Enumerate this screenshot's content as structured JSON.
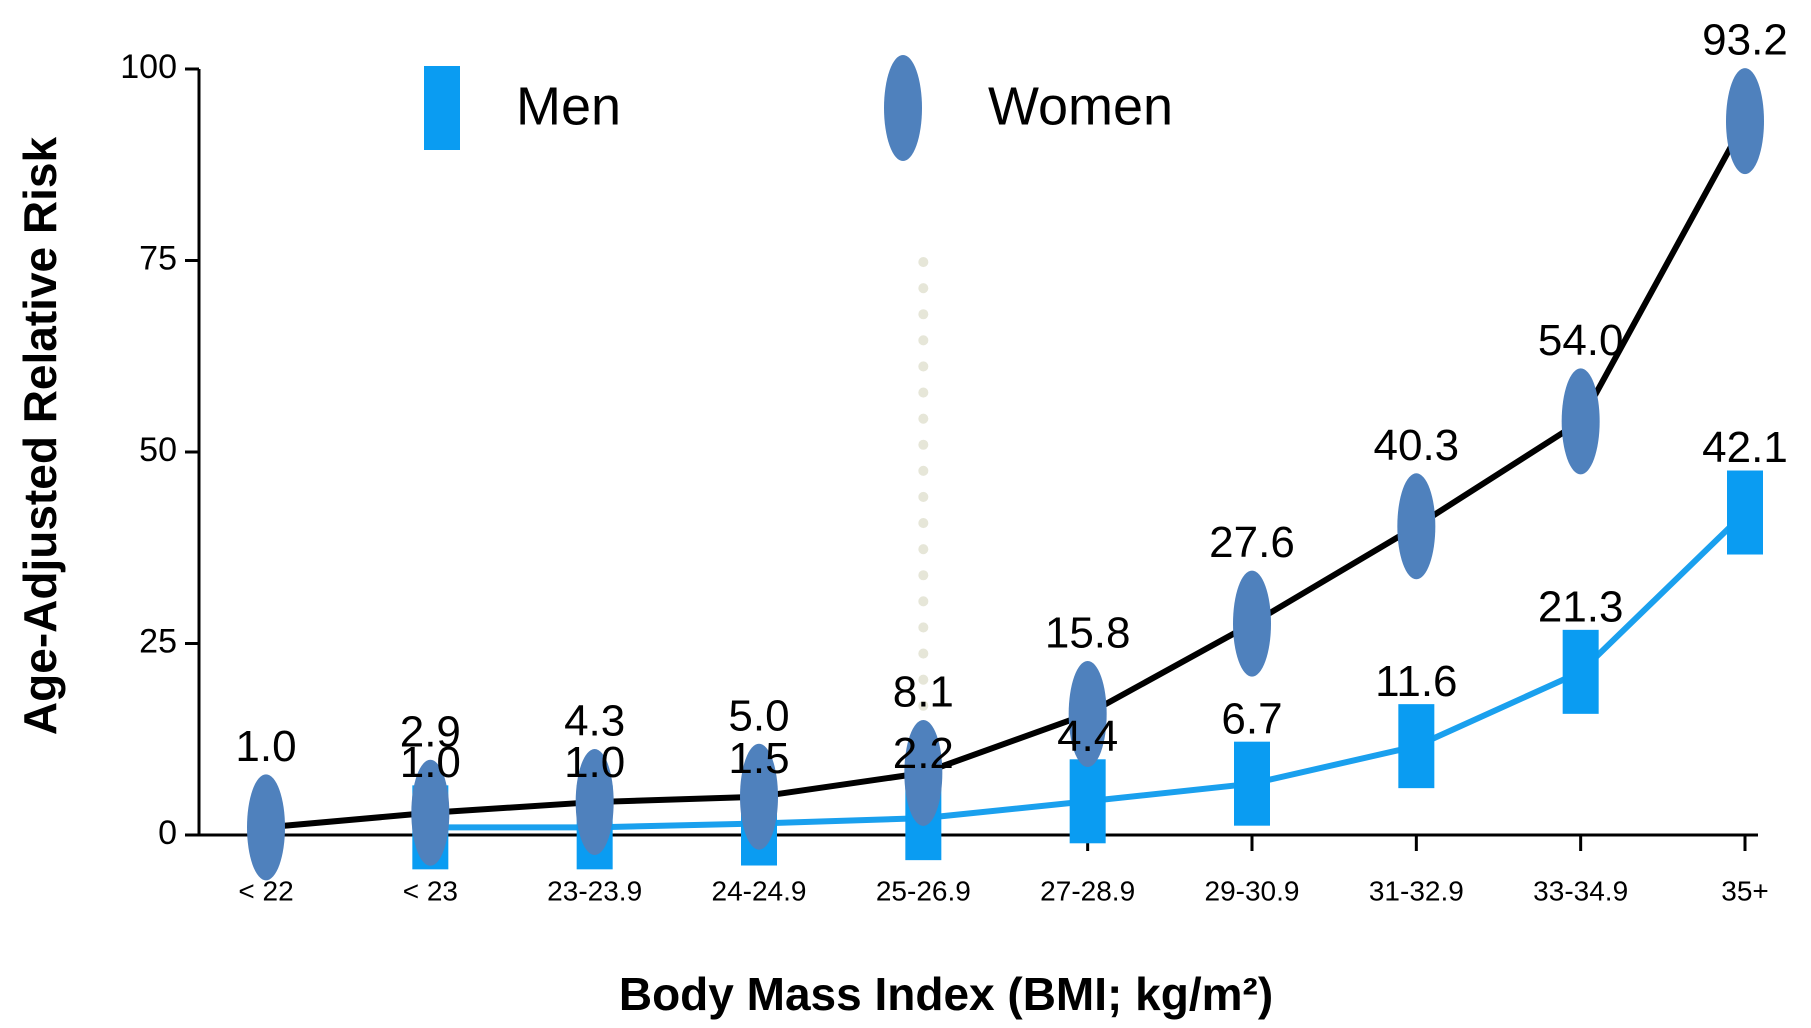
{
  "chart_data": {
    "type": "line",
    "y_label": "Age-Adjusted Relative Risk",
    "x_label": "Body Mass Index (BMI; kg/m²)",
    "categories": [
      "< 22",
      "< 23",
      "23-23.9",
      "24-24.9",
      "25-26.9",
      "27-28.9",
      "29-30.9",
      "31-32.9",
      "33-34.9",
      "35+"
    ],
    "series": [
      {
        "name": "Men",
        "color": "#0a9cf2",
        "line_color": "#1aa0ee",
        "marker": "square",
        "values": [
          null,
          1.0,
          1.0,
          1.5,
          2.2,
          4.4,
          6.7,
          11.6,
          21.3,
          42.1
        ],
        "value_labels": [
          null,
          "1.0",
          "1.0",
          "1.5",
          "2.2",
          "4.4",
          "6.7",
          "11.6",
          "21.3",
          "42.1"
        ]
      },
      {
        "name": "Women",
        "color": "#4f81bd",
        "line_color": "#000000",
        "marker": "ellipse",
        "values": [
          1.0,
          2.9,
          4.3,
          5.0,
          8.1,
          15.8,
          27.6,
          40.3,
          54.0,
          93.2
        ],
        "value_labels": [
          "1.0",
          "2.9",
          "4.3",
          "5.0",
          "8.1",
          "15.8",
          "27.6",
          "40.3",
          "54.0",
          "93.2"
        ]
      }
    ],
    "ylim": [
      0,
      100
    ],
    "yticks": [
      0,
      25,
      50,
      75,
      100
    ],
    "grid": false
  }
}
